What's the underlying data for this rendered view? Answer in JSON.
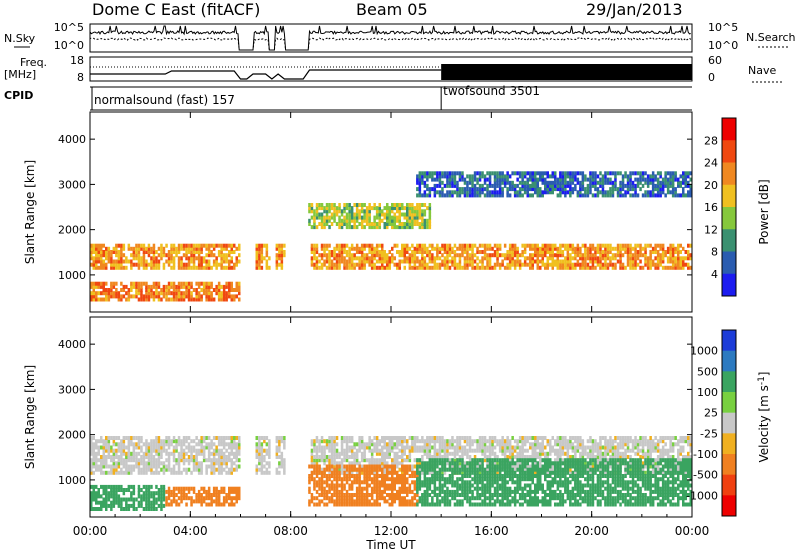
{
  "header": {
    "station": "Dome C East (fitACF)",
    "beam": "Beam 05",
    "date": "29/Jan/2013"
  },
  "nsky_panel": {
    "left_label": "N.Sky",
    "right_label": "N.Search",
    "left_ticks": [
      "10^5",
      "10^0"
    ],
    "right_ticks": [
      "10^5",
      "10^0"
    ]
  },
  "freq_panel": {
    "left_label_line1": "Freq.",
    "left_label_line2": "[MHz]",
    "right_label": "Nave",
    "left_ticks": [
      "18",
      "8"
    ],
    "right_ticks": [
      "60",
      "0"
    ]
  },
  "cpid_panel": {
    "label": "CPID",
    "modes": [
      {
        "name": "normalsound (fast) 157",
        "start_hour": 0
      },
      {
        "name": "twofsound 3501",
        "start_hour": 14
      }
    ]
  },
  "x_axis": {
    "label": "Time UT",
    "range_hours": [
      0,
      24
    ],
    "tick_labels": [
      "00:00",
      "04:00",
      "08:00",
      "12:00",
      "16:00",
      "20:00",
      "00:00"
    ]
  },
  "power_panel": {
    "ylabel": "Slant Range [km]",
    "y_ticks": [
      "1000",
      "2000",
      "3000",
      "4000"
    ],
    "colorbar_title": "Power [dB]",
    "colorbar_ticks": [
      "4",
      "8",
      "12",
      "16",
      "20",
      "24",
      "28"
    ],
    "colors": [
      "#1c1cf0",
      "#2a5cb0",
      "#3a9070",
      "#86c83c",
      "#f0c020",
      "#f08820",
      "#f04810",
      "#ee0000"
    ]
  },
  "velocity_panel": {
    "ylabel": "Slant Range [km]",
    "y_ticks": [
      "1000",
      "2000",
      "3000",
      "4000"
    ],
    "colorbar_title": "Velocity  [m s",
    "colorbar_title_sup": "-1",
    "colorbar_title_end": "]",
    "colorbar_ticks": [
      "1000",
      "500",
      "100",
      "25",
      "-25",
      "-100",
      "-500",
      "-1000"
    ],
    "colors": [
      "#1c3cd8",
      "#2c7ac0",
      "#3aa460",
      "#78d040",
      "#c8c8c8",
      "#f0b020",
      "#f08020",
      "#f04010",
      "#ee0000"
    ]
  },
  "chart_data": {
    "type": "heatmap",
    "title": "Dome C East (fitACF)  Beam 05  29/Jan/2013",
    "xlabel": "Time UT",
    "ylabel": "Slant Range [km]",
    "xlim": [
      0,
      24
    ],
    "ylim": [
      180,
      4600
    ],
    "data_gaps_hours": [
      [
        5.9,
        6.5
      ],
      [
        7.1,
        7.35
      ],
      [
        7.75,
        8.7
      ]
    ],
    "power_bands": [
      {
        "t_start": 0,
        "t_end": 24,
        "range_km": [
          1200,
          1700
        ],
        "power_db": 26
      },
      {
        "t_start": 0,
        "t_end": 5.9,
        "range_km": [
          500,
          900
        ],
        "power_db": 28
      },
      {
        "t_start": 8.7,
        "t_end": 13.5,
        "range_km": [
          2100,
          2600
        ],
        "power_db": 20
      },
      {
        "t_start": 13,
        "t_end": 24,
        "range_km": [
          2800,
          3300
        ],
        "power_db": 12
      }
    ],
    "velocity_bands": [
      {
        "t_start": 0,
        "t_end": 24,
        "range_km": [
          1200,
          2000
        ],
        "velocity": 0
      },
      {
        "t_start": 0,
        "t_end": 3,
        "range_km": [
          400,
          900
        ],
        "velocity": 150
      },
      {
        "t_start": 3,
        "t_end": 5.9,
        "range_km": [
          500,
          900
        ],
        "velocity": -150
      },
      {
        "t_start": 8.7,
        "t_end": 13,
        "range_km": [
          500,
          1400
        ],
        "velocity": -150
      },
      {
        "t_start": 13,
        "t_end": 24,
        "range_km": [
          500,
          1500
        ],
        "velocity": 150
      }
    ],
    "mode_change_hour": 14
  }
}
